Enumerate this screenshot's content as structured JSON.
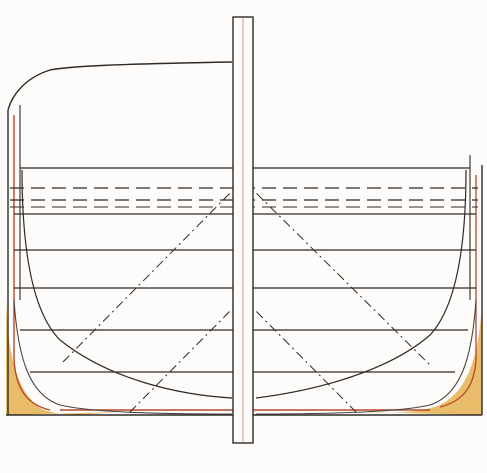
{
  "colors": {
    "paper": "#fdfcfa",
    "ink": "#2f2a26",
    "ink_light": "#4a4440",
    "keel_red": "#b7472a",
    "fill_ochre": "#e7b559",
    "dash": "#2f2a26"
  },
  "figure": {
    "has_text": false
  }
}
